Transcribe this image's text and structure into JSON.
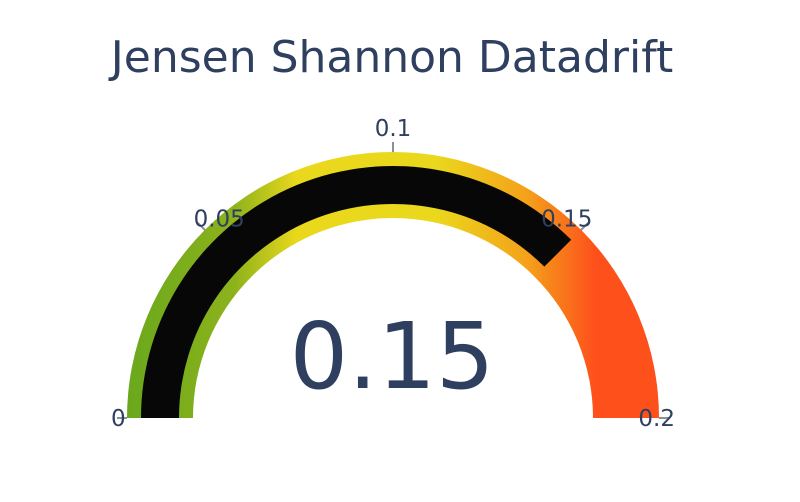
{
  "chart_data": {
    "type": "gauge",
    "title": "Jensen Shannon Datadrift",
    "value": 0.15,
    "value_label": "0.15",
    "range": [
      0,
      0.2
    ],
    "ticks": [
      0,
      0.05,
      0.1,
      0.15,
      0.2
    ],
    "tick_labels": [
      "0",
      "0.05",
      "0.1",
      "0.15",
      "0.2"
    ],
    "gradient_colors": [
      "#6aa81d",
      "#ead81c",
      "#f4a21a",
      "#fd501b"
    ],
    "bar_color": "#070707"
  }
}
